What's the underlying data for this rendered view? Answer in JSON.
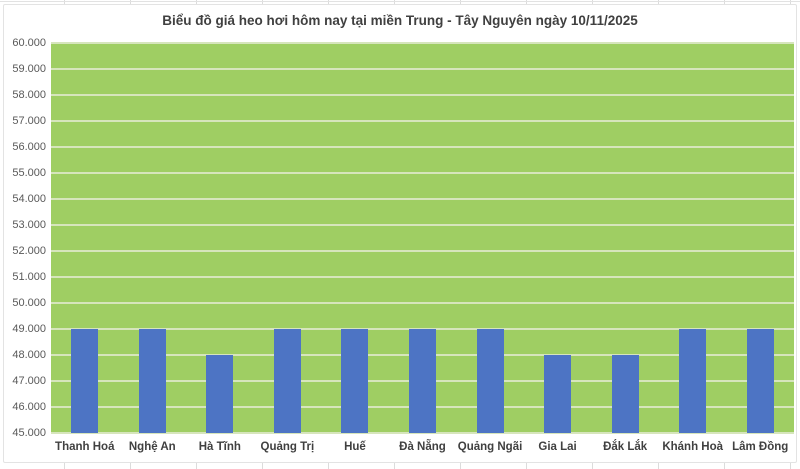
{
  "chart_data": {
    "type": "bar",
    "title": "Biểu đồ giá heo hơi hôm nay tại miền Trung - Tây Nguyên ngày 10/11/2025",
    "categories": [
      "Thanh Hoá",
      "Nghệ An",
      "Hà Tĩnh",
      "Quảng Trị",
      "Huế",
      "Đà Nẵng",
      "Quảng Ngãi",
      "Gia Lai",
      "Đắk Lắk",
      "Khánh Hoà",
      "Lâm Đồng"
    ],
    "values": [
      49000,
      49000,
      48000,
      49000,
      49000,
      49000,
      49000,
      48000,
      48000,
      49000,
      49000
    ],
    "xlabel": "",
    "ylabel": "",
    "ylim": [
      45000,
      60000
    ],
    "ytick_step": 1000,
    "ytick_labels": [
      "45.000",
      "46.000",
      "47.000",
      "48.000",
      "49.000",
      "50.000",
      "51.000",
      "52.000",
      "53.000",
      "54.000",
      "55.000",
      "56.000",
      "57.000",
      "58.000",
      "59.000",
      "60.000"
    ],
    "grid": true,
    "legend": false,
    "colors": {
      "bar": "#4D74C4",
      "plot_bg": "#9FCE63",
      "gridline": "#D6E5BC",
      "title_text": "#404040",
      "ytick_text": "#595959",
      "xtick_text": "#404040",
      "chart_bg": "#FFFFFF",
      "chart_border": "#E3E3E3",
      "sheet_line": "#DCDCDC"
    }
  }
}
